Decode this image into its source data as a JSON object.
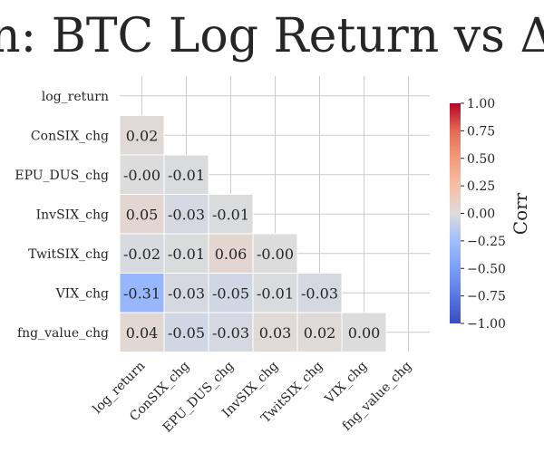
{
  "chart_data": {
    "type": "heatmap",
    "title": "n: BTC Log Return vs Δ",
    "variables": [
      "log_return",
      "ConSIX_chg",
      "EPU_DUS_chg",
      "InvSIX_chg",
      "TwitSIX_chg",
      "VIX_chg",
      "fng_value_chg"
    ],
    "matrix": [
      [
        null,
        null,
        null,
        null,
        null,
        null,
        null
      ],
      [
        "0.02",
        null,
        null,
        null,
        null,
        null,
        null
      ],
      [
        "-0.00",
        "-0.01",
        null,
        null,
        null,
        null,
        null
      ],
      [
        "0.05",
        "-0.03",
        "-0.01",
        null,
        null,
        null,
        null
      ],
      [
        "-0.02",
        "-0.01",
        "0.06",
        "-0.00",
        null,
        null,
        null
      ],
      [
        "-0.31",
        "-0.03",
        "-0.05",
        "-0.01",
        "-0.03",
        null,
        null
      ],
      [
        "0.04",
        "-0.05",
        "-0.03",
        "0.03",
        "0.02",
        "0.00",
        null
      ]
    ],
    "mask": "upper-triangle-including-diagonal",
    "colormap": "coolwarm",
    "vmin": -1.0,
    "vmax": 1.0,
    "colorbar": {
      "label": "Corr",
      "ticks": [
        "1.00",
        "0.75",
        "0.50",
        "0.25",
        "0.00",
        "−0.25",
        "−0.50",
        "−0.75",
        "−1.00"
      ],
      "tick_values": [
        1.0,
        0.75,
        0.5,
        0.25,
        0.0,
        -0.25,
        -0.5,
        -0.75,
        -1.0
      ]
    },
    "grid": true
  }
}
